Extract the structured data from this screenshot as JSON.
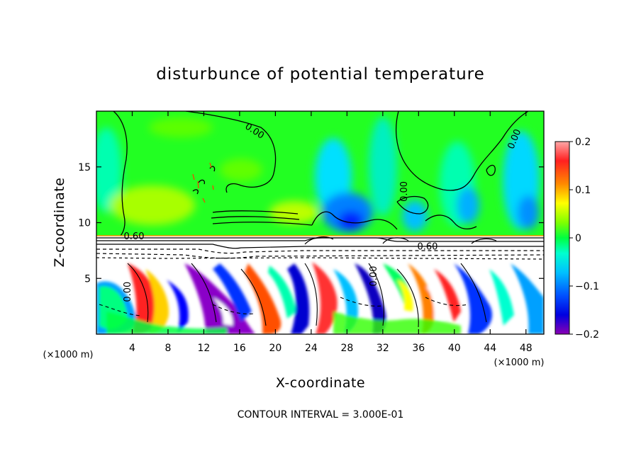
{
  "chart_data": {
    "type": "heatmap",
    "title": "disturbunce of potential temperature",
    "xlabel": "X-coordinate",
    "ylabel": "Z-coordinate",
    "x_unit_label": "(×1000 m)",
    "z_unit_label": "(×1000 m)",
    "xlim": [
      0,
      50
    ],
    "ylim": [
      0,
      20
    ],
    "x_ticks": [
      4,
      8,
      12,
      16,
      20,
      24,
      28,
      32,
      36,
      40,
      44,
      48
    ],
    "y_ticks": [
      5,
      10,
      15
    ],
    "colorbar": {
      "min": -0.2,
      "max": 0.2,
      "tick_values": [
        0.2,
        0.1,
        0,
        -0.1,
        -0.2
      ],
      "tick_labels": [
        "0.2",
        "0.1",
        "0",
        "−0.1",
        "−0.2"
      ],
      "colors": [
        "#ffa0a0",
        "#ff4040",
        "#ff0000",
        "#ff6a00",
        "#ff9900",
        "#ffd000",
        "#ffff00",
        "#c0ff00",
        "#80ff00",
        "#30ff00",
        "#00ff30",
        "#00ff90",
        "#00ffd0",
        "#00e0ff",
        "#00b0ff",
        "#0080ff",
        "#0040ff",
        "#0000ff",
        "#4000d0",
        "#8000b0"
      ]
    },
    "contour_labels": [
      {
        "text": "0.00",
        "x": 17.5,
        "z": 18.0,
        "rot": 33
      },
      {
        "text": "0.00",
        "x": 47.0,
        "z": 17.4,
        "rot": -68
      },
      {
        "text": "0.60",
        "x": 4.2,
        "z": 8.5,
        "rot": 0
      },
      {
        "text": "0.60",
        "x": 37.0,
        "z": 7.6,
        "rot": 0
      },
      {
        "text": "0.00",
        "x": 3.8,
        "z": 3.8,
        "rot": -90
      },
      {
        "text": "0.00",
        "x": 31.3,
        "z": 5.2,
        "rot": -90
      },
      {
        "text": "0.00",
        "x": 34.7,
        "z": 12.8,
        "rot": -90
      }
    ],
    "contour_interval_text": "CONTOUR INTERVAL = 3.000E-01"
  }
}
